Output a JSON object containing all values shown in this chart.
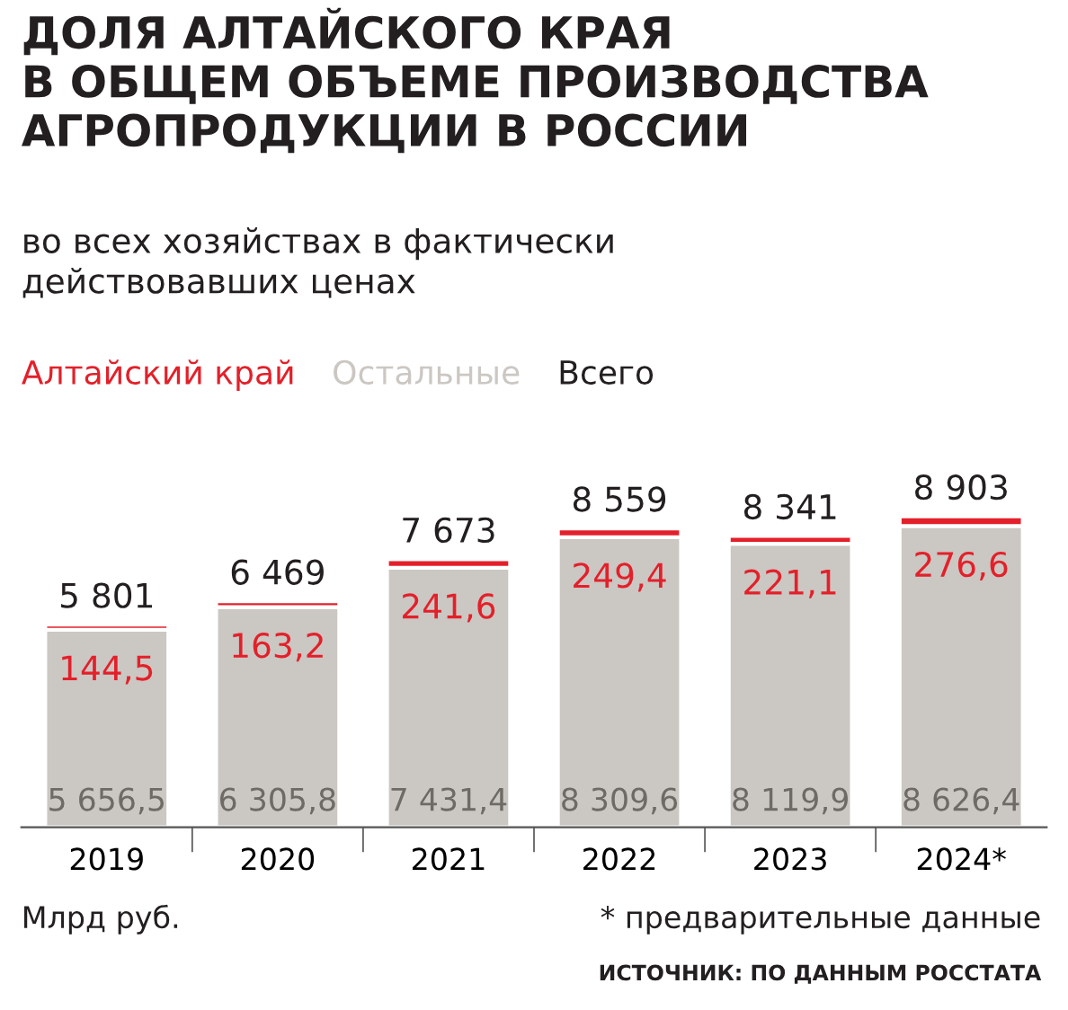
{
  "chart_data": {
    "type": "bar",
    "stacked": true,
    "title": "ДОЛЯ АЛТАЙСКОГО КРАЯ\nВ ОБЩЕМ ОБЪЕМЕ ПРОИЗВОДСТВА\nАГРОПРОДУКЦИИ В РОССИИ",
    "subtitle": "во всех хозяйствах в фактически\nдействовавших ценах",
    "categories": [
      "2019",
      "2020",
      "2021",
      "2022",
      "2023",
      "2024*"
    ],
    "series": [
      {
        "name": "Остальные",
        "color": "#cbc7c3",
        "values": [
          5656.5,
          6305.8,
          7431.4,
          8309.6,
          8119.9,
          8626.4
        ],
        "value_labels": [
          "5 656,5",
          "6 305,8",
          "7 431,4",
          "8 309,6",
          "8 119,9",
          "8 626,4"
        ]
      },
      {
        "name": "Алтайский край",
        "color": "#e3202a",
        "values": [
          144.5,
          163.2,
          241.6,
          249.4,
          221.1,
          276.6
        ],
        "value_labels": [
          "144,5",
          "163,2",
          "241,6",
          "249,4",
          "221,1",
          "276,6"
        ]
      }
    ],
    "totals": [
      "5 801",
      "6 469",
      "7 673",
      "8 559",
      "8 341",
      "8 903"
    ],
    "legend": "top left",
    "annotations": [
      "Всего",
      "Млрд руб.",
      "* предварительные данные",
      "ИСТОЧНИК: ПО ДАННЫМ РОССТАТА"
    ]
  }
}
